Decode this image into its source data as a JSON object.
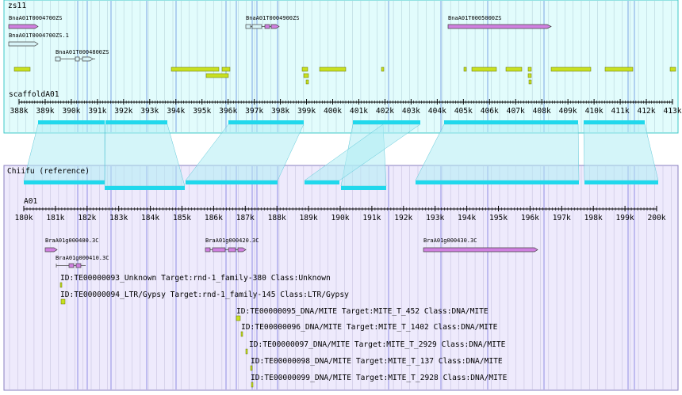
{
  "top": {
    "title": "zs11",
    "genes": [
      "BnaA01T0004700ZS",
      "BnaA01T0004700ZS.1",
      "BnaA01T0004800ZS",
      "BnaA01T0004900ZS",
      "BnaA01T0005000ZS"
    ],
    "track": "scaffoldA01",
    "ticks": [
      "388k",
      "389k",
      "390k",
      "391k",
      "392k",
      "393k",
      "394k",
      "395k",
      "396k",
      "397k",
      "398k",
      "399k",
      "400k",
      "401k",
      "402k",
      "403k",
      "404k",
      "405k",
      "406k",
      "407k",
      "408k",
      "409k",
      "410k",
      "411k",
      "412k",
      "413k"
    ]
  },
  "bottom": {
    "title": "Chiifu (reference)",
    "track": "A01",
    "ticks": [
      "180k",
      "181k",
      "182k",
      "183k",
      "184k",
      "185k",
      "186k",
      "187k",
      "188k",
      "189k",
      "190k",
      "191k",
      "192k",
      "193k",
      "194k",
      "195k",
      "196k",
      "197k",
      "198k",
      "199k",
      "200k"
    ],
    "genes": [
      "BraA01g000400.3C",
      "BraA01g000410.3C",
      "BraA01g000420.3C",
      "BraA01g000430.3C"
    ],
    "repeats": [
      "ID:TE00000093_Unknown Target:rnd-1_family-380 Class:Unknown",
      "ID:TE00000094_LTR/Gypsy Target:rnd-1_family-145 Class:LTR/Gypsy",
      "ID:TE00000095_DNA/MITE Target:MITE_T_452 Class:DNA/MITE",
      "ID:TE00000096_DNA/MITE Target:MITE_T_1402 Class:DNA/MITE",
      "ID:TE00000097_DNA/MITE Target:MITE_T_2929 Class:DNA/MITE",
      "ID:TE00000098_DNA/MITE Target:MITE_T_137 Class:DNA/MITE",
      "ID:TE00000099_DNA/MITE Target:MITE_T_2928 Class:DNA/MITE"
    ]
  }
}
